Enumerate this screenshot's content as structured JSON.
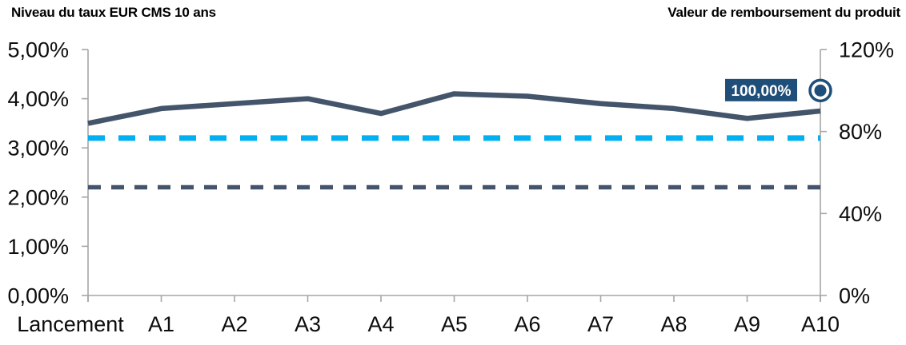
{
  "chart_data": {
    "type": "line",
    "categories": [
      "Lancement",
      "A1",
      "A2",
      "A3",
      "A4",
      "A5",
      "A6",
      "A7",
      "A8",
      "A9",
      "A10"
    ],
    "series": [
      {
        "name": "Niveau du taux EUR CMS 10 ans",
        "axis": "left",
        "style": "solid",
        "color": "#44546A",
        "unit": "%",
        "values": [
          3.5,
          3.8,
          3.9,
          4.0,
          3.7,
          4.1,
          4.05,
          3.9,
          3.8,
          3.6,
          3.75
        ]
      }
    ],
    "reference_lines": [
      {
        "name": "cyan-dashed-level",
        "axis": "left",
        "value": 3.2,
        "style": "dashed",
        "color": "#00B0F0"
      },
      {
        "name": "navy-dashed-level",
        "axis": "left",
        "value": 2.2,
        "style": "dashed",
        "color": "#44546A"
      }
    ],
    "point_marker": {
      "label": "100,00%",
      "value": 100,
      "axis": "right",
      "at_category": "A10",
      "box_color": "#1F4E79",
      "text_color": "#FFFFFF"
    },
    "left_axis": {
      "title": "Niveau du taux EUR CMS 10 ans",
      "min": 0,
      "max": 5,
      "tick_values": [
        5,
        4,
        3,
        2,
        1,
        0
      ],
      "tick_labels": [
        "5,00%",
        "4,00%",
        "3,00%",
        "2,00%",
        "1,00%",
        "0,00%"
      ]
    },
    "right_axis": {
      "title": "Valeur de remboursement du produit",
      "min": 0,
      "max": 120,
      "tick_values": [
        120,
        80,
        40,
        0
      ],
      "tick_labels": [
        "120%",
        "80%",
        "40%",
        "0%"
      ]
    },
    "x_axis": {
      "tick_marks": true
    },
    "grid": false,
    "legend": "none",
    "colors": {
      "line_navy": "#44546A",
      "dash_cyan": "#00B0F0",
      "marker_navy": "#1F4E79",
      "axis_gray": "#A6A6A6",
      "label_black": "#0D0D0D"
    }
  }
}
